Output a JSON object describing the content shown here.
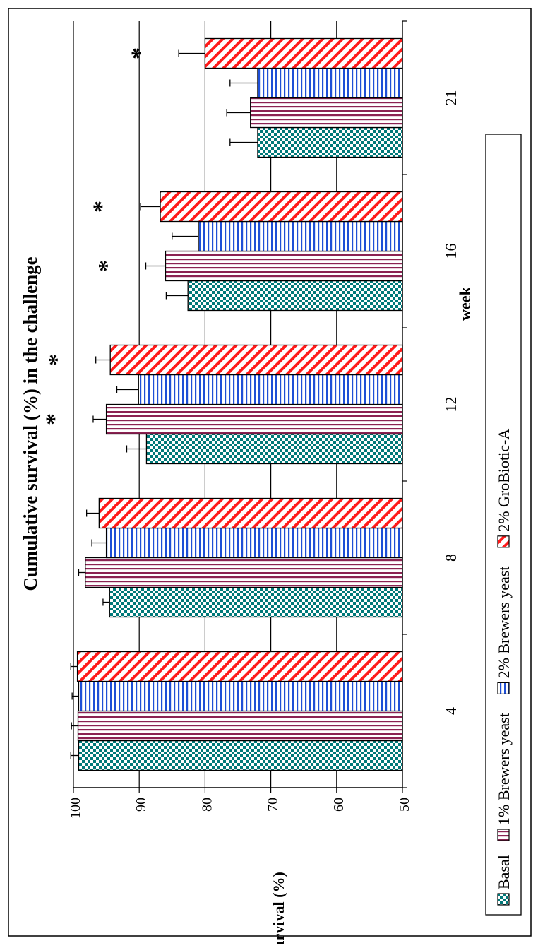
{
  "chart_data": {
    "type": "bar",
    "title": "Cumulative survival (%) in the challenge",
    "xlabel": "week",
    "ylabel": "Survival (%)",
    "ylim": [
      50,
      100
    ],
    "y_ticks": [
      "50",
      "60",
      "70",
      "80",
      "90",
      "100"
    ],
    "categories": [
      "4",
      "8",
      "12",
      "16",
      "21"
    ],
    "grid": true,
    "legend_position": "bottom",
    "orientation": "rotated 90° counter-clockwise",
    "series": [
      {
        "name": "Basal",
        "pattern": "checker",
        "color": "#007a7a",
        "values": [
          99.2,
          94.5,
          88.9,
          82.6,
          72.0
        ],
        "errors": [
          1.2,
          1.0,
          3.0,
          3.3,
          4.2
        ]
      },
      {
        "name": "1% Brewers yeast",
        "pattern": "vertical-stripes",
        "color": "#8b2252",
        "values": [
          99.3,
          98.2,
          95.0,
          86.0,
          73.1
        ],
        "errors": [
          1.0,
          1.0,
          2.0,
          3.0,
          3.6
        ]
      },
      {
        "name": "2% Brewers yeast",
        "pattern": "horizontal-stripes",
        "color": "#1e4fd6",
        "values": [
          99.2,
          95.0,
          90.1,
          81.0,
          72.0
        ],
        "errors": [
          1.0,
          2.2,
          3.3,
          4.0,
          4.2
        ]
      },
      {
        "name": "2% GroBiotic-A",
        "pattern": "diagonal-stripes",
        "color": "#ff1a1a",
        "values": [
          99.4,
          96.1,
          94.4,
          86.8,
          80.0
        ],
        "errors": [
          1.0,
          1.9,
          2.2,
          3.0,
          4.0
        ]
      }
    ],
    "annotations": [
      {
        "text": "*",
        "category": "12",
        "series": "1% Brewers yeast"
      },
      {
        "text": "*",
        "category": "12",
        "series": "2% GroBiotic-A"
      },
      {
        "text": "*",
        "category": "16",
        "series": "1% Brewers yeast"
      },
      {
        "text": "*",
        "category": "16",
        "series": "2% GroBiotic-A"
      },
      {
        "text": "*",
        "category": "21",
        "series": "2% GroBiotic-A"
      }
    ]
  }
}
